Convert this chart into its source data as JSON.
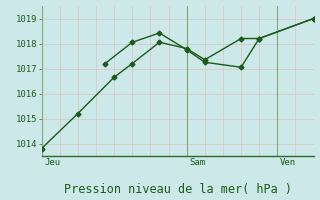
{
  "background_color": "#cce8e8",
  "grid_color": "#d8c8c8",
  "line_color": "#1a5c1a",
  "spine_color": "#2a6a2a",
  "xlabel": "Pression niveau de la mer( hPa )",
  "xlabel_fontsize": 8.5,
  "ylim": [
    1013.5,
    1019.5
  ],
  "yticks": [
    1014,
    1015,
    1016,
    1017,
    1018,
    1019
  ],
  "day_labels": [
    "Jeu",
    "Sam",
    "Ven"
  ],
  "day_positions": [
    0,
    8,
    13
  ],
  "xmin": 0,
  "xmax": 15,
  "num_xgrid": 15,
  "series1_x": [
    0,
    2,
    4,
    5,
    6.5,
    8,
    9,
    11,
    12,
    15
  ],
  "series1_y": [
    1013.8,
    1015.2,
    1016.65,
    1017.2,
    1018.05,
    1017.8,
    1017.35,
    1018.2,
    1018.2,
    1019.0
  ],
  "series2_x": [
    3.5,
    5,
    6.5,
    8,
    9,
    11,
    12,
    15
  ],
  "series2_y": [
    1017.2,
    1018.05,
    1018.42,
    1017.75,
    1017.25,
    1017.05,
    1018.2,
    1019.0
  ]
}
